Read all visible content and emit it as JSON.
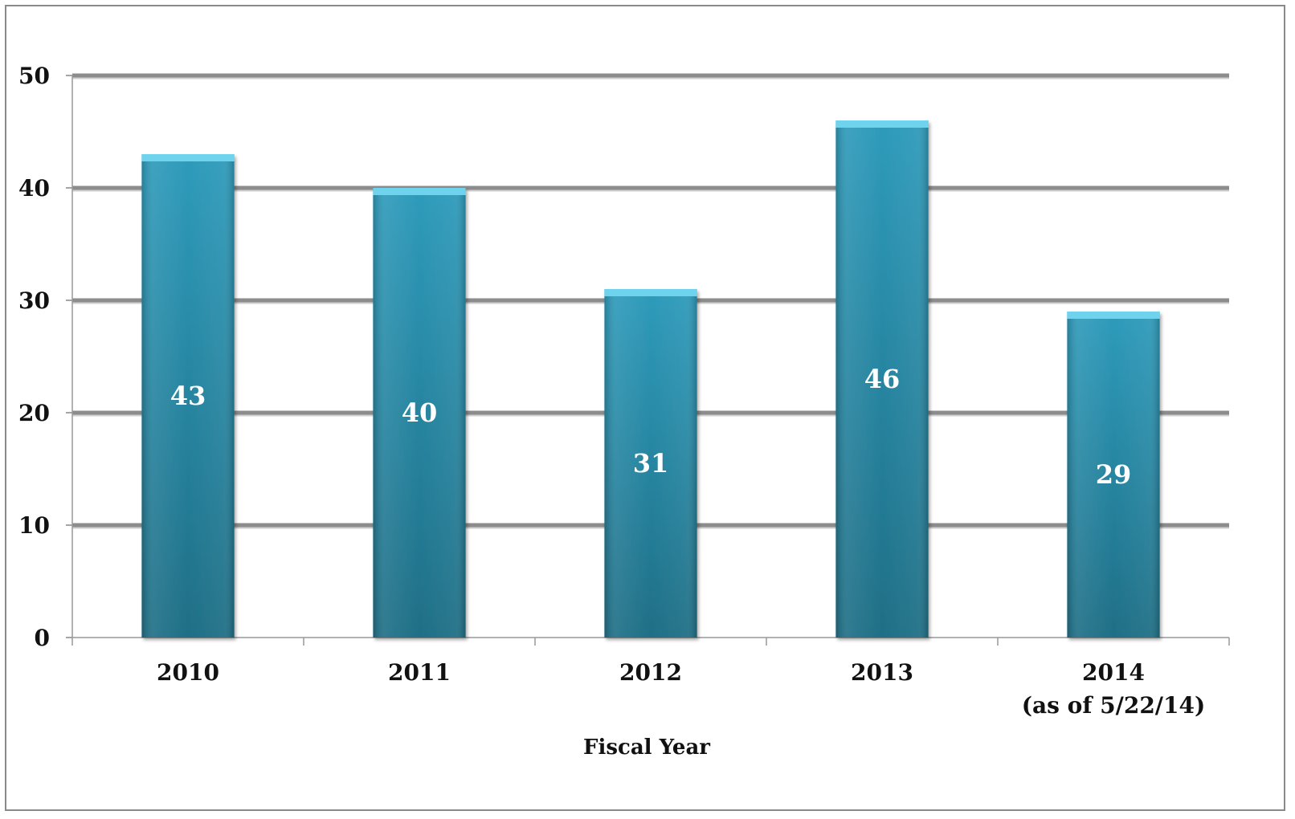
{
  "chart_data": {
    "type": "bar",
    "categories": [
      "2010",
      "2011",
      "2012",
      "2013",
      "2014"
    ],
    "category_sublabels": [
      "",
      "",
      "",
      "",
      "(as of 5/22/14)"
    ],
    "values": [
      43,
      40,
      31,
      46,
      29
    ],
    "data_labels": [
      "43",
      "40",
      "31",
      "46",
      "29"
    ],
    "title": "",
    "xlabel": "Fiscal Year",
    "ylabel": "",
    "ylim": [
      0,
      50
    ],
    "yticks": [
      0,
      10,
      20,
      30,
      40,
      50
    ],
    "grid": true,
    "legend": "none",
    "bar_color": "#2e9bbb",
    "bar_color_dark": "#1f6f86",
    "gridline_color": "#8c8c8c"
  }
}
